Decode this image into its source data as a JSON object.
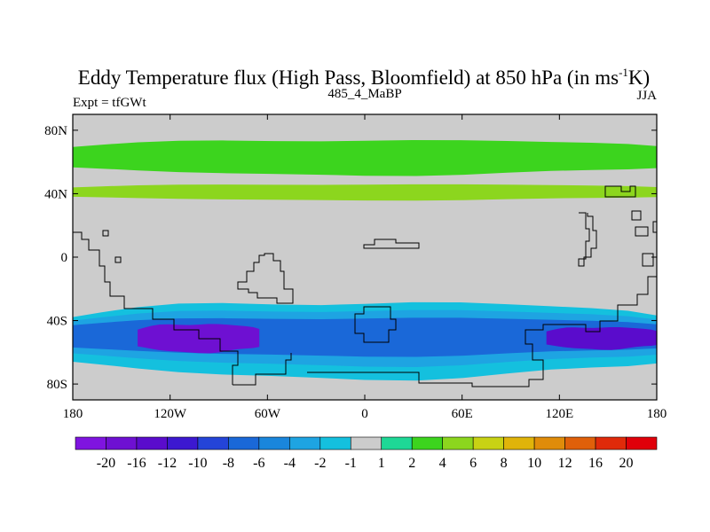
{
  "chart_data": {
    "type": "heatmap",
    "title": {
      "main": "Eddy Temperature flux (High Pass, Bloomfield) at 850 hPa (in ms",
      "superscript": "-1",
      "tail": "K)"
    },
    "left_subtitle": "Expt = tfGWt",
    "center_subtitle": "485_4_MaBP",
    "right_subtitle": "JJA",
    "xlabel": "",
    "ylabel": "",
    "xlim": [
      -180,
      180
    ],
    "ylim": [
      -90,
      90
    ],
    "x_ticks": [
      {
        "value": -180,
        "label": "180"
      },
      {
        "value": -120,
        "label": "120W"
      },
      {
        "value": -60,
        "label": "60W"
      },
      {
        "value": 0,
        "label": "0"
      },
      {
        "value": 60,
        "label": "60E"
      },
      {
        "value": 120,
        "label": "120E"
      },
      {
        "value": 180,
        "label": "180"
      }
    ],
    "y_ticks": [
      {
        "value": 80,
        "label": "80N"
      },
      {
        "value": 40,
        "label": "40N"
      },
      {
        "value": 0,
        "label": "0"
      },
      {
        "value": -40,
        "label": "40S"
      },
      {
        "value": -80,
        "label": "80S"
      }
    ],
    "colorbar": {
      "levels": [
        "-20",
        "-16",
        "-12",
        "-10",
        "-8",
        "-6",
        "-4",
        "-2",
        "-1",
        "1",
        "2",
        "4",
        "6",
        "8",
        "10",
        "12",
        "16",
        "20"
      ],
      "colors": [
        "#7f14e0",
        "#6e10d2",
        "#5a0ccc",
        "#3c18d0",
        "#2444d8",
        "#1a68d8",
        "#1a86dc",
        "#1ea4e2",
        "#14c0de",
        "#cccccc",
        "#1ed896",
        "#3cd41e",
        "#8cd61e",
        "#c8d214",
        "#e0b40a",
        "#e08c0a",
        "#e0600a",
        "#e02a0a",
        "#e0000a"
      ]
    },
    "flux_regions": [
      {
        "name": "nh-high-lat-band",
        "value": 2,
        "lon": [
          -180,
          180
        ],
        "lat": [
          74,
          52
        ]
      },
      {
        "name": "nh-mid-lat-band",
        "value": 4,
        "lon": [
          -180,
          180
        ],
        "lat": [
          46,
          36
        ]
      },
      {
        "name": "sh-storm-track-outer",
        "value": -2,
        "lon": [
          -180,
          180
        ],
        "lat": [
          -28,
          -76
        ]
      },
      {
        "name": "sh-storm-track-mid",
        "value": -4,
        "lon": [
          -180,
          180
        ],
        "lat": [
          -33,
          -68
        ]
      },
      {
        "name": "sh-storm-track-core",
        "value": -8,
        "lon": [
          -180,
          180
        ],
        "lat": [
          -38,
          -62
        ]
      },
      {
        "name": "sh-pacific-maximum",
        "value": -20,
        "lon": [
          -140,
          -65
        ],
        "lat": [
          -42,
          -60
        ]
      },
      {
        "name": "sh-west-pacific-maximum",
        "value": -16,
        "lon": [
          112,
          180
        ],
        "lat": [
          -44,
          -58
        ]
      }
    ],
    "contour_lines": "continental outlines (black)"
  }
}
